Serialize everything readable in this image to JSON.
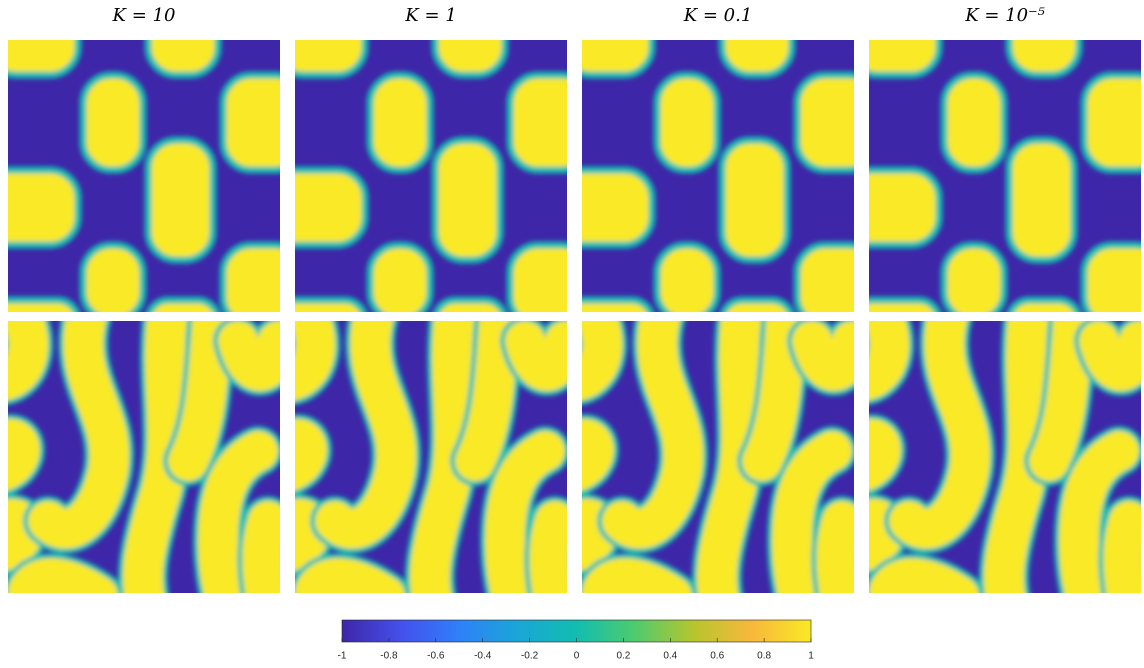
{
  "chart_data": {
    "type": "heatmap",
    "titles": [
      "K = 10",
      "K = 1",
      "K = 0.1",
      "K = 10⁻⁵"
    ],
    "colorbar": {
      "clim": [
        -1,
        1
      ],
      "ticks": [
        -1,
        -0.8,
        -0.6,
        -0.4,
        -0.2,
        0,
        0.2,
        0.4,
        0.6,
        0.8,
        1
      ],
      "colormap": [
        "#3e26a8",
        "#4450ea",
        "#2f80f9",
        "#1aa6d6",
        "#12bdb0",
        "#4fcb6c",
        "#b7c52e",
        "#f8b83b",
        "#f9e926"
      ]
    }
  }
}
